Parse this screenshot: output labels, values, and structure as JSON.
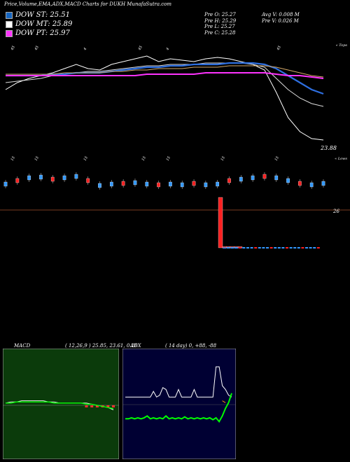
{
  "header": {
    "title": "Price,Volume,EMA,ADX,MACD Charts for DUKH MunafaSutra.com",
    "legend": [
      {
        "label": "DOW ST: 25.51",
        "color": "#1565c0"
      },
      {
        "label": "DOW MT: 25.89",
        "color": "#ffffff"
      },
      {
        "label": "DOW PT: 25.97",
        "color": "#ff33ff"
      }
    ],
    "prev_ohlc": [
      "Pre   O: 25.27",
      "Pre   H: 25.29",
      "Pre   L: 25.27",
      "Pre   C: 25.28"
    ],
    "avg_volume": [
      "Avg V: 0.008  M",
      "Pre   V: 0.026  M"
    ]
  },
  "main_chart": {
    "top_label": "« Tops",
    "lows_label": "« Lows",
    "price_label": "23.88",
    "level_label": "26",
    "level_line_color": "#a0522d",
    "top_markers": [
      "45",
      "45",
      "4",
      "45",
      "4",
      "45"
    ],
    "low_markers": [
      "15",
      "15",
      "15",
      "15",
      "15",
      "15",
      "15"
    ]
  },
  "chart_data": [
    {
      "type": "line",
      "title": "",
      "series": [
        {
          "color": "#ffffff",
          "values": [
            25.9,
            25.95,
            25.98,
            26.0,
            26.02,
            26.05,
            26.08,
            26.05,
            26.04,
            26.08,
            26.1,
            26.12,
            26.14,
            26.1,
            26.12,
            26.11,
            26.1,
            26.12,
            26.13,
            26.12,
            26.1,
            26.08,
            26.04,
            25.88,
            25.7,
            25.6,
            25.55,
            25.54
          ]
        },
        {
          "color": "#dddddd",
          "values": [
            25.95,
            25.96,
            25.97,
            25.98,
            26.0,
            26.01,
            26.02,
            26.03,
            26.03,
            26.04,
            26.05,
            26.06,
            26.07,
            26.07,
            26.08,
            26.08,
            26.08,
            26.09,
            26.09,
            26.09,
            26.09,
            26.08,
            26.06,
            25.98,
            25.9,
            25.84,
            25.8,
            25.78
          ]
        },
        {
          "color": "#2e6fe0",
          "values": [
            26.0,
            26.0,
            26.0,
            26.0,
            26.01,
            26.01,
            26.02,
            26.02,
            26.02,
            26.03,
            26.04,
            26.05,
            26.06,
            26.06,
            26.07,
            26.07,
            26.08,
            26.08,
            26.08,
            26.09,
            26.09,
            26.09,
            26.08,
            26.05,
            26.0,
            25.95,
            25.9,
            25.87
          ]
        },
        {
          "color": "#d4a96a",
          "values": [
            26.01,
            26.01,
            26.01,
            26.01,
            26.01,
            26.02,
            26.02,
            26.02,
            26.02,
            26.03,
            26.03,
            26.04,
            26.04,
            26.05,
            26.05,
            26.05,
            26.06,
            26.06,
            26.06,
            26.07,
            26.07,
            26.07,
            26.07,
            26.06,
            26.04,
            26.02,
            26.0,
            25.99
          ]
        },
        {
          "color": "#ff33ff",
          "values": [
            26.0,
            26.0,
            26.0,
            26.0,
            26.0,
            26.0,
            26.0,
            26.0,
            26.0,
            26.0,
            26.0,
            26.0,
            26.01,
            26.01,
            26.01,
            26.01,
            26.01,
            26.02,
            26.02,
            26.02,
            26.02,
            26.02,
            26.02,
            26.01,
            26.0,
            26.0,
            25.99,
            25.98
          ]
        }
      ]
    },
    {
      "type": "bar",
      "title": "",
      "series": [
        {
          "color": "#3399ff",
          "values": [
            0.05,
            0.06,
            0.04,
            0.05,
            0.03,
            0.05,
            0.04,
            0.05,
            0.05,
            0.04,
            0.05,
            0.04,
            0.04,
            0.05,
            0.04,
            0.05,
            0.04,
            0.05,
            0.04,
            0.05,
            0.04,
            0.05,
            0.04,
            0.05,
            0.04,
            0.05,
            0.04,
            0.05
          ]
        },
        {
          "color": "#ff2020",
          "values": [
            0.02,
            0.02,
            0.02,
            0.02,
            0.02,
            0.02,
            0.02,
            0.02,
            0.02,
            0.02,
            0.02,
            0.02,
            0.02,
            0.02,
            0.02,
            0.02,
            0.02,
            0.02,
            0.02,
            0.02,
            0.02,
            0.02,
            0.9,
            0.02,
            0.02,
            0.02,
            0.02,
            0.02
          ]
        }
      ]
    },
    {
      "type": "line",
      "title": "MACD",
      "params": "( 12,26,9 ) 25.85,  23.61,  0.26",
      "series": [
        {
          "color": "#ffffff",
          "values": [
            0.02,
            0.03,
            0.03,
            0.04,
            0.04,
            0.04,
            0.04,
            0.04,
            0.03,
            0.03,
            0.02,
            0.02,
            0.02,
            0.02,
            0.02,
            0.02,
            0.01,
            0.0,
            -0.01,
            -0.02,
            -0.04
          ]
        },
        {
          "color": "#00ff00",
          "values": [
            0.02,
            0.02,
            0.03,
            0.03,
            0.03,
            0.03,
            0.03,
            0.03,
            0.03,
            0.02,
            0.02,
            0.02,
            0.02,
            0.02,
            0.02,
            0.01,
            0.01,
            0.0,
            -0.01,
            -0.02,
            -0.03
          ]
        }
      ]
    },
    {
      "type": "line",
      "title": "ADX",
      "params": "( 14  day) 0,  +88,  -88",
      "series": [
        {
          "color": "#ffffff",
          "values": [
            8,
            8,
            8,
            8,
            8,
            8,
            8,
            8,
            8,
            14,
            8,
            10,
            18,
            16,
            8,
            8,
            8,
            16,
            8,
            8,
            8,
            8,
            16,
            8,
            8,
            8,
            8,
            8,
            8,
            40,
            40,
            20,
            16,
            10,
            8
          ]
        },
        {
          "color": "#00ff00",
          "values": [
            -15,
            -15,
            -14,
            -15,
            -14,
            -15,
            -14,
            -12,
            -15,
            -14,
            -15,
            -14,
            -15,
            -12,
            -15,
            -14,
            -15,
            -14,
            -15,
            -13,
            -15,
            -14,
            -15,
            -14,
            -15,
            -14,
            -15,
            -14,
            -16,
            -14,
            -18,
            -12,
            -4,
            2,
            12
          ]
        },
        {
          "color": "#ff8c00",
          "values": [
            null,
            null,
            null,
            null,
            null,
            null,
            null,
            null,
            null,
            null,
            null,
            null,
            null,
            null,
            null,
            null,
            null,
            null,
            null,
            null,
            null,
            null,
            null,
            null,
            null,
            null,
            null,
            null,
            null,
            null,
            null,
            4,
            2,
            null,
            null
          ]
        }
      ]
    }
  ]
}
